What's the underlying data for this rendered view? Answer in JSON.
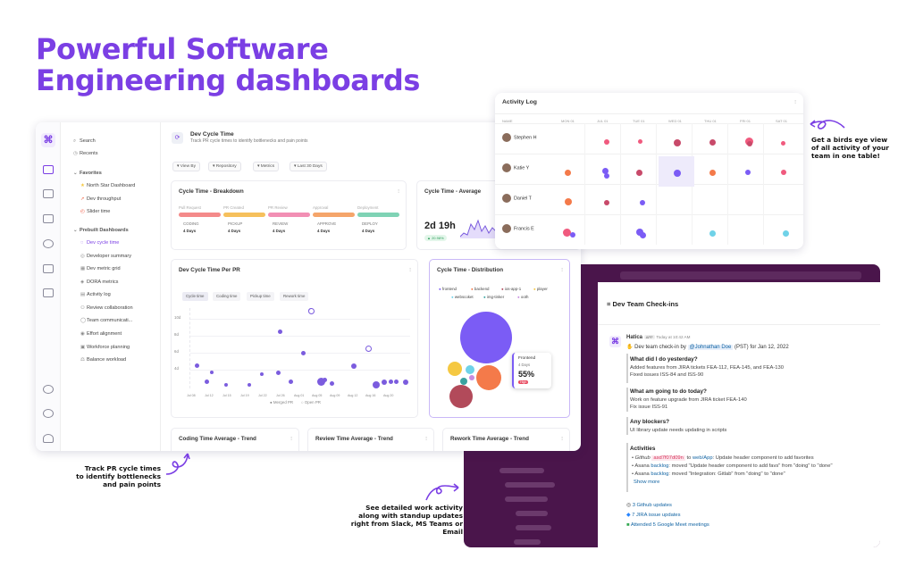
{
  "headline": {
    "line1": "Powerful Software",
    "line2": "Engineering dashboards"
  },
  "colors": {
    "accent": "#7b3fe4",
    "slack_bg": "#4a154b",
    "pink": "#f05a7e"
  },
  "sidebar": {
    "search": "Search",
    "recents": "Recents",
    "favorites_header": "Favorites",
    "favorites": [
      "North Star Dashboard",
      "Dev throughput",
      "Slider time"
    ],
    "prebuilt_header": "Prebuilt Dashboards",
    "prebuilt": [
      "Dev cycle time",
      "Developer summary",
      "Dev metric grid",
      "DORA metrics",
      "Activity log",
      "Review collaboration",
      "Team communicati...",
      "Effort alignment",
      "Workforce planning",
      "Balance workload"
    ]
  },
  "dashboard": {
    "title": "Dev Cycle Time",
    "subtitle": "Track PR cycle times to identify bottlenecks and pain points",
    "filters": [
      "View By",
      "Repository",
      "Metrics",
      "Last 30 Days"
    ],
    "breakdown": {
      "title": "Cycle Time - Breakdown",
      "stages": [
        {
          "top": "Pull Request",
          "name": "CODING",
          "value": "4 Days",
          "color": "#f48a8a"
        },
        {
          "top": "PR Created",
          "name": "PICKUP",
          "value": "4 Days",
          "color": "#f6c05c"
        },
        {
          "top": "PR Review",
          "name": "REVIEW",
          "value": "4 Days",
          "color": "#f28fb4"
        },
        {
          "top": "Approval",
          "name": "APPROVE",
          "value": "4 Days",
          "color": "#f5a56a"
        },
        {
          "top": "Deployment",
          "name": "DEPLOY",
          "value": "4 Days",
          "color": "#7fd3b5"
        }
      ]
    },
    "average": {
      "title": "Cycle Time - Average",
      "value": "2d 19h",
      "change": "▲ 20.98%"
    },
    "per_pr": {
      "title": "Dev Cycle Time Per PR",
      "tabs": [
        "Cycle time",
        "Coding time",
        "Pickup time",
        "Rework time"
      ],
      "yticks": [
        "10d",
        "8d",
        "6d",
        "4d"
      ],
      "xticks": [
        "Jul 08",
        "Jul 12",
        "Jul 15",
        "Jul 19",
        "Jul 22",
        "Jul 26",
        "Aug 01",
        "Aug 05",
        "Aug 09",
        "Aug 12",
        "Aug 16",
        "Aug 20"
      ],
      "legend": [
        "Merged PR",
        "Open PR"
      ]
    },
    "distribution": {
      "title": "Cycle Time - Distribution",
      "legend": [
        {
          "label": "frontend",
          "color": "#7b5cf5"
        },
        {
          "label": "backend",
          "color": "#f47a4a"
        },
        {
          "label": "ios-app-1",
          "color": "#b24a5a"
        },
        {
          "label": "player",
          "color": "#f5c842"
        },
        {
          "label": "webscoket",
          "color": "#6fd2e8"
        },
        {
          "label": "img-tinker",
          "color": "#3aa2a0"
        },
        {
          "label": "ooth",
          "color": "#c88be0"
        }
      ],
      "tooltip": {
        "name": "Frontend",
        "days": "4 Days",
        "pct": "55%",
        "tag": "High"
      }
    },
    "bottom_panels": [
      "Coding Time Average - Trend",
      "Review Time Average - Trend",
      "Rework Time Average - Trend"
    ]
  },
  "activity_log": {
    "title": "Activity Log",
    "columns": [
      "NAME",
      "MON 01",
      "JUL 01",
      "TUE 01",
      "WED 01",
      "THU 01",
      "FRI 01",
      "SAT 01"
    ],
    "rows": [
      "Stephen H",
      "Katie Y",
      "Daniel T",
      "Francis E"
    ]
  },
  "annotations": {
    "birds_eye": "Get a birds eye view of all activity of your team in one table!",
    "track": "Track PR cycle times to identify bottlenecks and pain points",
    "slack": "See detailed work activity along with standup updates right from Slack, MS Teams or Email"
  },
  "slack": {
    "channel": "Dev Team Check-ins",
    "app_name": "Hatica",
    "app_badge": "APP",
    "time": "Today at 10:42 AM",
    "checkin_prefix": "Dev team check-in by",
    "mention": "@Johnathan Doe",
    "checkin_suffix": "(PST) for Jan 12, 2022",
    "q1": "What did I do yesterday?",
    "a1_1": "Added features from JIRA tickets FEA-112, FEA-145, and FEA-130",
    "a1_2": "Fixed issues ISS-84 and ISS-90",
    "q2": "What am going to do today?",
    "a2_1": "Work on feature upgrade from JIRA ticket FEA-140",
    "a2_2": "Fix issue ISS-91",
    "q3": "Any blockers?",
    "a3_1": "UI library update needs updating in scripts",
    "activities": "Activities",
    "act1_a": "Github",
    "act1_hash": "asd7f07d09n",
    "act1_b": "to",
    "act1_repo": "web/App",
    "act1_c": ": Update header component to add favorites",
    "act2_a": "Asana",
    "act2_link": "backlog",
    "act2_b": ": moved \"Update header component to add favs\" from \"doing\" to \"done\"",
    "act3_a": "Asana",
    "act3_link": "backlog",
    "act3_b": ": moved \"Integration: Gitlab\" from \"doing\" to \"done\"",
    "show_more": "Show more",
    "summary": [
      "3 Github updates",
      "7 JIRA issue updates",
      "Attended 5 Google Meet meetings"
    ]
  }
}
